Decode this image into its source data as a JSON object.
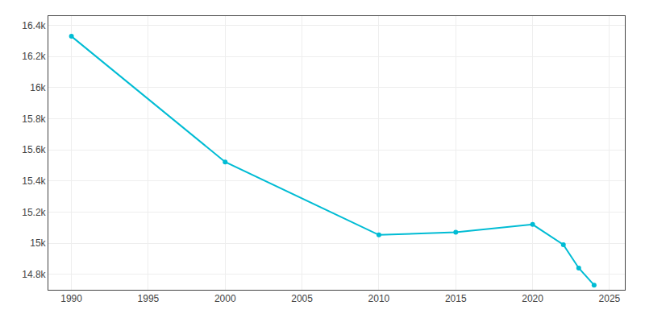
{
  "chart_data": {
    "type": "line",
    "x": [
      1990,
      2000,
      2010,
      2015,
      2020,
      2022,
      2023,
      2024
    ],
    "values": [
      16330,
      15522,
      15053,
      15070,
      15120,
      14990,
      14840,
      14730
    ],
    "color": "#00BCD4",
    "marker": "circle",
    "line_style": "solid",
    "xlim": [
      1988.5,
      2026
    ],
    "xticks": [
      1990,
      1995,
      2000,
      2005,
      2010,
      2015,
      2020,
      2025
    ],
    "ylim": [
      14700,
      16460
    ],
    "yticks": [
      {
        "value": 14800,
        "label": "14.8k"
      },
      {
        "value": 15000,
        "label": "15k"
      },
      {
        "value": 15200,
        "label": "15.2k"
      },
      {
        "value": 15400,
        "label": "15.4k"
      },
      {
        "value": 15600,
        "label": "15.6k"
      },
      {
        "value": 15800,
        "label": "15.8k"
      },
      {
        "value": 16000,
        "label": "16k"
      },
      {
        "value": 16200,
        "label": "16.2k"
      },
      {
        "value": 16400,
        "label": "16.4k"
      }
    ],
    "grid": true
  }
}
